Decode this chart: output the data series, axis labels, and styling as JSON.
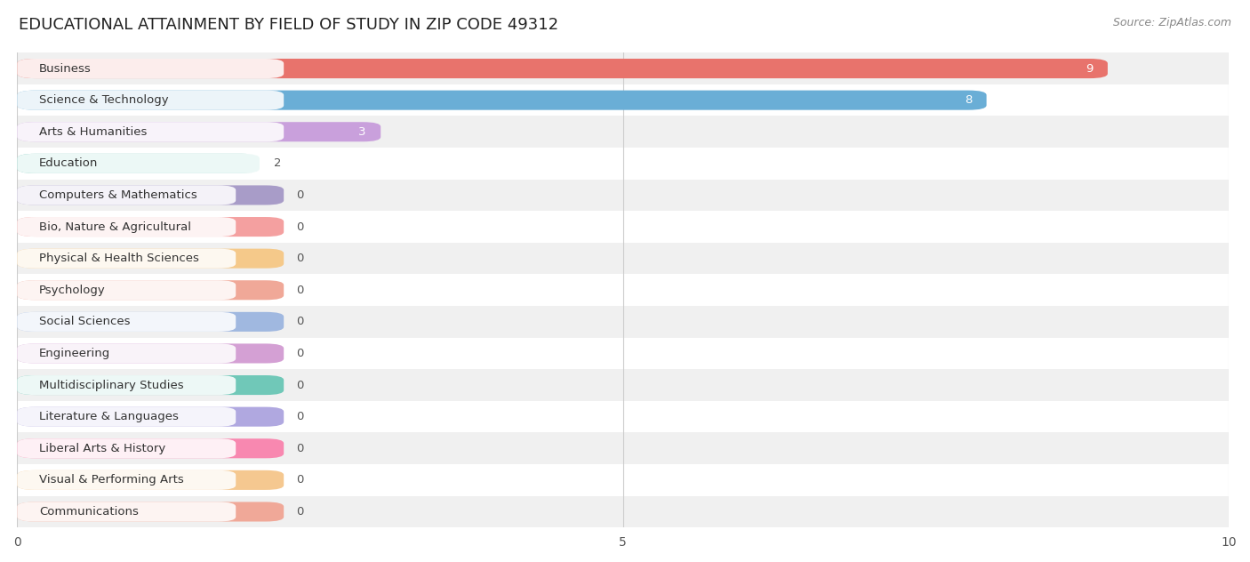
{
  "title": "EDUCATIONAL ATTAINMENT BY FIELD OF STUDY IN ZIP CODE 49312",
  "source": "Source: ZipAtlas.com",
  "categories": [
    "Business",
    "Science & Technology",
    "Arts & Humanities",
    "Education",
    "Computers & Mathematics",
    "Bio, Nature & Agricultural",
    "Physical & Health Sciences",
    "Psychology",
    "Social Sciences",
    "Engineering",
    "Multidisciplinary Studies",
    "Literature & Languages",
    "Liberal Arts & History",
    "Visual & Performing Arts",
    "Communications"
  ],
  "values": [
    9,
    8,
    3,
    2,
    0,
    0,
    0,
    0,
    0,
    0,
    0,
    0,
    0,
    0,
    0
  ],
  "bar_colors": [
    "#E8736C",
    "#6AAED6",
    "#C9A0DC",
    "#6DC7B8",
    "#A89CC8",
    "#F4A0A0",
    "#F5C98A",
    "#F0A898",
    "#A0B8E0",
    "#D4A0D4",
    "#70C8B8",
    "#B0A8E0",
    "#F888B0",
    "#F5C890",
    "#F0A898"
  ],
  "xlim": [
    0,
    10
  ],
  "xticks": [
    0,
    5,
    10
  ],
  "background_color": "#ffffff",
  "row_bg_colors": [
    "#f0f0f0",
    "#ffffff"
  ],
  "title_fontsize": 13,
  "label_fontsize": 9.5,
  "value_fontsize": 9.5,
  "bar_height": 0.62,
  "zero_bar_width": 2.2
}
